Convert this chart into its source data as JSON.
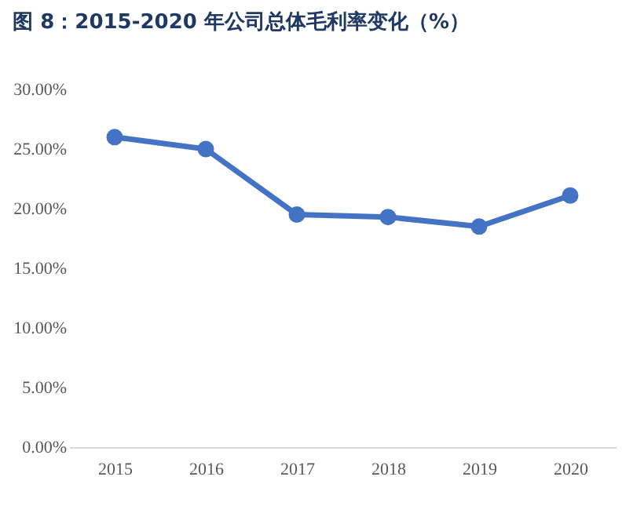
{
  "chart_data": {
    "type": "line",
    "title": "图 8：2015-2020 年公司总体毛利率变化（%）",
    "categories": [
      "2015",
      "2016",
      "2017",
      "2018",
      "2019",
      "2020"
    ],
    "series": [
      {
        "color": "#4472c4",
        "values": [
          26.0,
          25.0,
          19.5,
          19.3,
          18.5,
          21.1
        ]
      }
    ],
    "ylim": [
      0,
      30
    ],
    "yticks": [
      {
        "value": 0,
        "label": "0.00%"
      },
      {
        "value": 5,
        "label": "5.00%"
      },
      {
        "value": 10,
        "label": "10.00%"
      },
      {
        "value": 15,
        "label": "15.00%"
      },
      {
        "value": 20,
        "label": "20.00%"
      },
      {
        "value": 25,
        "label": "25.00%"
      },
      {
        "value": 30,
        "label": "30.00%"
      }
    ],
    "grid": false,
    "legend": false,
    "marker": "circle",
    "line_style": "solid"
  }
}
